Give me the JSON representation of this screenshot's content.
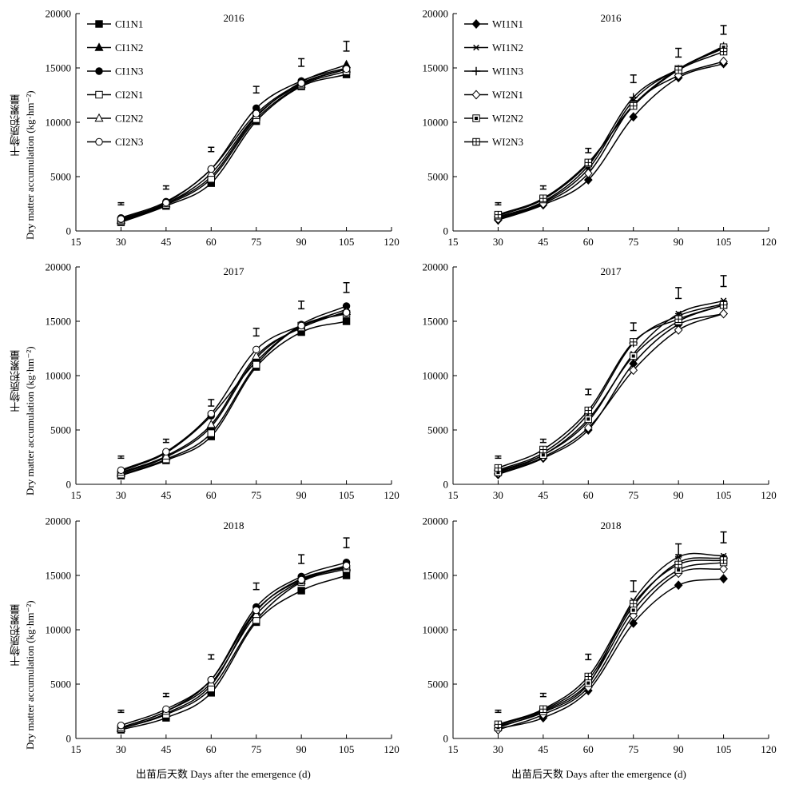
{
  "figure": {
    "ylabel_cn": "干物质积累量",
    "ylabel_en": "Dry matter accumulation (kg·hm⁻²)",
    "xlabel": "出苗后天数 Days after the emergence (d)"
  },
  "chart_data": [
    {
      "type": "line",
      "title": "2016",
      "legend_position": "top-left",
      "x": [
        30,
        45,
        60,
        75,
        90,
        105
      ],
      "xlim": [
        15,
        120
      ],
      "ylim": [
        0,
        20000
      ],
      "xticks": [
        15,
        30,
        45,
        60,
        75,
        90,
        105,
        120
      ],
      "yticks": [
        0,
        5000,
        10000,
        15000,
        20000
      ],
      "series": [
        {
          "name": "CI1N1",
          "marker": "square-filled",
          "values": [
            800,
            2300,
            4400,
            10100,
            13300,
            14400
          ]
        },
        {
          "name": "CI1N2",
          "marker": "triangle-filled",
          "values": [
            1000,
            2500,
            5000,
            10500,
            13700,
            15300
          ]
        },
        {
          "name": "CI1N3",
          "marker": "circle-filled",
          "values": [
            1200,
            2700,
            5700,
            11300,
            13800,
            15000
          ]
        },
        {
          "name": "CI2N1",
          "marker": "square-open",
          "values": [
            900,
            2400,
            4800,
            10300,
            13400,
            14700
          ]
        },
        {
          "name": "CI2N2",
          "marker": "triangle-open",
          "values": [
            1000,
            2500,
            5300,
            10600,
            13500,
            14900
          ]
        },
        {
          "name": "CI2N3",
          "marker": "circle-open",
          "values": [
            1100,
            2600,
            5700,
            10800,
            13600,
            14900
          ]
        }
      ],
      "error_bars": [
        {
          "x": 30,
          "y": 2500,
          "err": 100
        },
        {
          "x": 45,
          "y": 4000,
          "err": 150
        },
        {
          "x": 60,
          "y": 7500,
          "err": 200
        },
        {
          "x": 75,
          "y": 13000,
          "err": 300
        },
        {
          "x": 90,
          "y": 15500,
          "err": 350
        },
        {
          "x": 105,
          "y": 17000,
          "err": 450
        }
      ]
    },
    {
      "type": "line",
      "title": "2016",
      "legend_position": "top-left",
      "x": [
        30,
        45,
        60,
        75,
        90,
        105
      ],
      "xlim": [
        15,
        120
      ],
      "ylim": [
        0,
        20000
      ],
      "xticks": [
        15,
        30,
        45,
        60,
        75,
        90,
        105,
        120
      ],
      "yticks": [
        0,
        5000,
        10000,
        15000,
        20000
      ],
      "series": [
        {
          "name": "WI1N1",
          "marker": "diamond-filled",
          "values": [
            1000,
            2400,
            4700,
            10500,
            14100,
            15400
          ]
        },
        {
          "name": "WI1N2",
          "marker": "asterisk",
          "values": [
            1200,
            2600,
            5700,
            12000,
            14900,
            16800
          ]
        },
        {
          "name": "WI1N3",
          "marker": "plus",
          "values": [
            1300,
            2700,
            6000,
            12300,
            14900,
            17000
          ]
        },
        {
          "name": "WI2N1",
          "marker": "diamond-open",
          "values": [
            1100,
            2500,
            5300,
            11600,
            14300,
            15600
          ]
        },
        {
          "name": "WI2N2",
          "marker": "square-dot",
          "values": [
            1400,
            2900,
            6200,
            11600,
            14900,
            16900
          ]
        },
        {
          "name": "WI2N3",
          "marker": "square-cross",
          "values": [
            1500,
            3000,
            6300,
            11500,
            14800,
            16500
          ]
        }
      ],
      "error_bars": [
        {
          "x": 30,
          "y": 2500,
          "err": 100
        },
        {
          "x": 45,
          "y": 4000,
          "err": 150
        },
        {
          "x": 60,
          "y": 7400,
          "err": 200
        },
        {
          "x": 75,
          "y": 14000,
          "err": 350
        },
        {
          "x": 90,
          "y": 16400,
          "err": 400
        },
        {
          "x": 105,
          "y": 18500,
          "err": 400
        }
      ]
    },
    {
      "type": "line",
      "title": "2017",
      "legend_position": "none",
      "x": [
        30,
        45,
        60,
        75,
        90,
        105
      ],
      "xlim": [
        15,
        120
      ],
      "ylim": [
        0,
        20000
      ],
      "xticks": [
        15,
        30,
        45,
        60,
        75,
        90,
        105,
        120
      ],
      "yticks": [
        0,
        5000,
        10000,
        15000,
        20000
      ],
      "series": [
        {
          "name": "CI1N1",
          "marker": "square-filled",
          "values": [
            800,
            2200,
            4400,
            10800,
            14000,
            15000
          ]
        },
        {
          "name": "CI1N2",
          "marker": "triangle-filled",
          "values": [
            1000,
            2500,
            5300,
            11600,
            14500,
            16100
          ]
        },
        {
          "name": "CI1N3",
          "marker": "circle-filled",
          "values": [
            1200,
            2900,
            6300,
            11300,
            14700,
            16400
          ]
        },
        {
          "name": "CI2N1",
          "marker": "square-open",
          "values": [
            900,
            2300,
            4700,
            11000,
            14600,
            15700
          ]
        },
        {
          "name": "CI2N2",
          "marker": "triangle-open",
          "values": [
            1100,
            2600,
            5500,
            11800,
            14400,
            15900
          ]
        },
        {
          "name": "CI2N3",
          "marker": "circle-open",
          "values": [
            1300,
            3000,
            6500,
            12400,
            14600,
            15800
          ]
        }
      ],
      "error_bars": [
        {
          "x": 30,
          "y": 2500,
          "err": 100
        },
        {
          "x": 45,
          "y": 4000,
          "err": 150
        },
        {
          "x": 60,
          "y": 7500,
          "err": 300
        },
        {
          "x": 75,
          "y": 14000,
          "err": 350
        },
        {
          "x": 90,
          "y": 16500,
          "err": 350
        },
        {
          "x": 105,
          "y": 18100,
          "err": 450
        }
      ]
    },
    {
      "type": "line",
      "title": "2017",
      "legend_position": "none",
      "x": [
        30,
        45,
        60,
        75,
        90,
        105
      ],
      "xlim": [
        15,
        120
      ],
      "ylim": [
        0,
        20000
      ],
      "xticks": [
        15,
        30,
        45,
        60,
        75,
        90,
        105,
        120
      ],
      "yticks": [
        0,
        5000,
        10000,
        15000,
        20000
      ],
      "series": [
        {
          "name": "WI1N1",
          "marker": "diamond-filled",
          "values": [
            900,
            2400,
            5000,
            11100,
            14700,
            15700
          ]
        },
        {
          "name": "WI1N2",
          "marker": "asterisk",
          "values": [
            1200,
            2700,
            5800,
            12000,
            15700,
            16900
          ]
        },
        {
          "name": "WI1N3",
          "marker": "plus",
          "values": [
            1300,
            2900,
            6500,
            13000,
            15500,
            16600
          ]
        },
        {
          "name": "WI2N1",
          "marker": "diamond-open",
          "values": [
            1000,
            2500,
            5200,
            10500,
            14200,
            15700
          ]
        },
        {
          "name": "WI2N2",
          "marker": "square-dot",
          "values": [
            1100,
            2700,
            6000,
            11800,
            15000,
            16500
          ]
        },
        {
          "name": "WI2N3",
          "marker": "square-cross",
          "values": [
            1500,
            3200,
            6800,
            13100,
            15200,
            16500
          ]
        }
      ],
      "error_bars": [
        {
          "x": 30,
          "y": 2500,
          "err": 100
        },
        {
          "x": 45,
          "y": 4000,
          "err": 150
        },
        {
          "x": 60,
          "y": 8500,
          "err": 250
        },
        {
          "x": 75,
          "y": 14500,
          "err": 350
        },
        {
          "x": 90,
          "y": 17600,
          "err": 500
        },
        {
          "x": 105,
          "y": 18700,
          "err": 500
        }
      ]
    },
    {
      "type": "line",
      "title": "2018",
      "legend_position": "none",
      "x": [
        30,
        45,
        60,
        75,
        90,
        105
      ],
      "xlim": [
        15,
        120
      ],
      "ylim": [
        0,
        20000
      ],
      "xticks": [
        15,
        30,
        45,
        60,
        75,
        90,
        105,
        120
      ],
      "yticks": [
        0,
        5000,
        10000,
        15000,
        20000
      ],
      "series": [
        {
          "name": "CI1N1",
          "marker": "square-filled",
          "values": [
            800,
            1900,
            4200,
            10700,
            13600,
            15000
          ]
        },
        {
          "name": "CI1N2",
          "marker": "triangle-filled",
          "values": [
            900,
            2300,
            4900,
            11700,
            14700,
            15700
          ]
        },
        {
          "name": "CI1N3",
          "marker": "circle-filled",
          "values": [
            1000,
            2500,
            5400,
            12100,
            14900,
            16200
          ]
        },
        {
          "name": "CI2N1",
          "marker": "square-open",
          "values": [
            900,
            2200,
            4600,
            10900,
            14400,
            15600
          ]
        },
        {
          "name": "CI2N2",
          "marker": "triangle-open",
          "values": [
            1000,
            2500,
            5100,
            11400,
            14500,
            15800
          ]
        },
        {
          "name": "CI2N3",
          "marker": "circle-open",
          "values": [
            1200,
            2700,
            5400,
            11800,
            14600,
            15900
          ]
        }
      ],
      "error_bars": [
        {
          "x": 30,
          "y": 2500,
          "err": 100
        },
        {
          "x": 45,
          "y": 4000,
          "err": 150
        },
        {
          "x": 60,
          "y": 7500,
          "err": 200
        },
        {
          "x": 75,
          "y": 14000,
          "err": 300
        },
        {
          "x": 90,
          "y": 16500,
          "err": 400
        },
        {
          "x": 105,
          "y": 18000,
          "err": 450
        }
      ]
    },
    {
      "type": "line",
      "title": "2018",
      "legend_position": "none",
      "x": [
        30,
        45,
        60,
        75,
        90,
        105
      ],
      "xlim": [
        15,
        120
      ],
      "ylim": [
        0,
        20000
      ],
      "xticks": [
        15,
        30,
        45,
        60,
        75,
        90,
        105,
        120
      ],
      "yticks": [
        0,
        5000,
        10000,
        15000,
        20000
      ],
      "series": [
        {
          "name": "WI1N1",
          "marker": "diamond-filled",
          "values": [
            900,
            1900,
            4400,
            10600,
            14100,
            14700
          ]
        },
        {
          "name": "WI1N2",
          "marker": "asterisk",
          "values": [
            1100,
            2400,
            5000,
            12700,
            16700,
            16800
          ]
        },
        {
          "name": "WI1N3",
          "marker": "plus",
          "values": [
            1200,
            2600,
            5400,
            12200,
            16200,
            16600
          ]
        },
        {
          "name": "WI2N1",
          "marker": "diamond-open",
          "values": [
            800,
            2200,
            4700,
            11300,
            15200,
            15600
          ]
        },
        {
          "name": "WI2N2",
          "marker": "square-dot",
          "values": [
            1000,
            2500,
            5100,
            11800,
            15500,
            16200
          ]
        },
        {
          "name": "WI2N3",
          "marker": "square-cross",
          "values": [
            1300,
            2700,
            5700,
            12400,
            16000,
            16400
          ]
        }
      ],
      "error_bars": [
        {
          "x": 30,
          "y": 2500,
          "err": 100
        },
        {
          "x": 45,
          "y": 4000,
          "err": 150
        },
        {
          "x": 60,
          "y": 7500,
          "err": 250
        },
        {
          "x": 75,
          "y": 14000,
          "err": 500
        },
        {
          "x": 90,
          "y": 17400,
          "err": 500
        },
        {
          "x": 105,
          "y": 18500,
          "err": 500
        }
      ]
    }
  ]
}
